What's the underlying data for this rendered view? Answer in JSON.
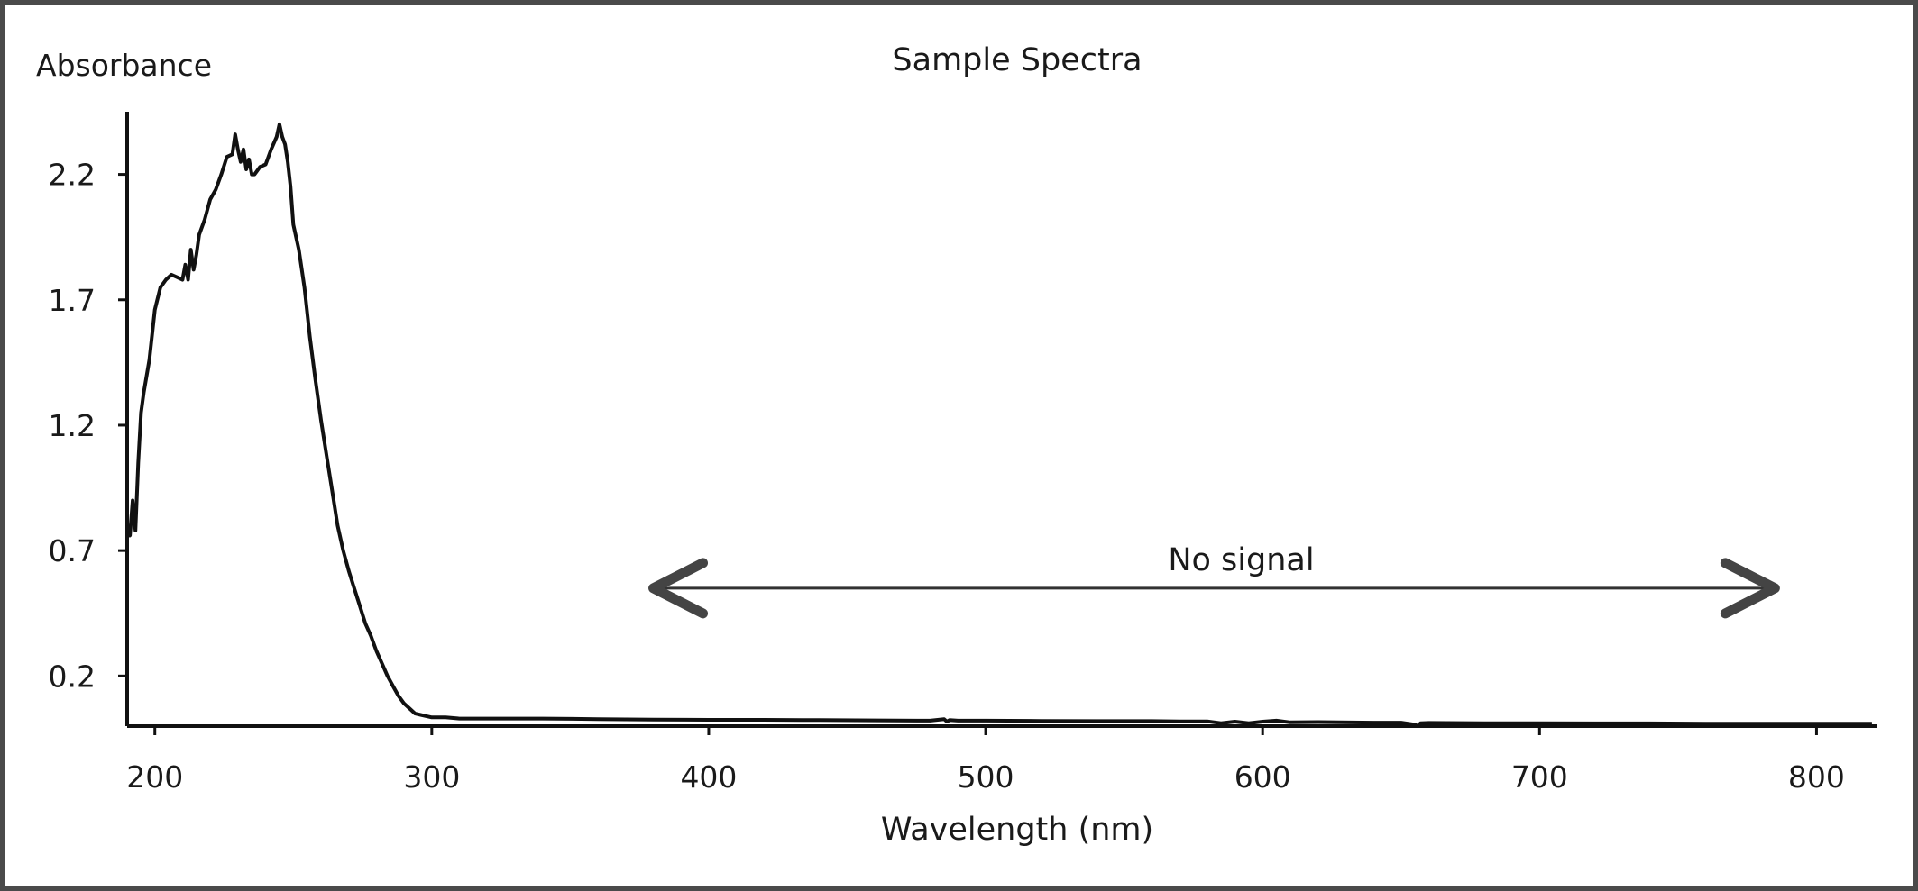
{
  "chart_data": {
    "type": "line",
    "title": "Sample Spectra",
    "xlabel": "Wavelength (nm)",
    "ylabel": "Absorbance",
    "xlim": [
      190,
      822
    ],
    "ylim": [
      0.0,
      2.45
    ],
    "xticks": [
      200,
      300,
      400,
      500,
      600,
      700,
      800
    ],
    "yticks": [
      0.2,
      0.7,
      1.2,
      1.7,
      2.2
    ],
    "ytick_labels": [
      "0.2",
      "0.7",
      "1.2",
      "1.7",
      "2.2"
    ],
    "grid": false,
    "annotation": {
      "text": "No signal",
      "type": "double-arrow",
      "x_start": 380,
      "x_end": 785,
      "y": 0.55
    },
    "series": [
      {
        "x": [
          190,
          191,
          192,
          193,
          194,
          195,
          196,
          198,
          200,
          202,
          204,
          206,
          208,
          210,
          211,
          212,
          213,
          214,
          215,
          216,
          218,
          220,
          222,
          224,
          226,
          228,
          229,
          230,
          231,
          232,
          233,
          234,
          235,
          236,
          238,
          240,
          242,
          244,
          245,
          246,
          247,
          248,
          249,
          250,
          252,
          254,
          256,
          258,
          260,
          262,
          264,
          266,
          268,
          270,
          272,
          274,
          276,
          278,
          280,
          282,
          284,
          286,
          288,
          290,
          292,
          294,
          296,
          298,
          300,
          305,
          310,
          320,
          340,
          360,
          380,
          400,
          420,
          440,
          460,
          480,
          485,
          486,
          487,
          490,
          500,
          520,
          540,
          560,
          570,
          580,
          585,
          590,
          595,
          600,
          605,
          610,
          620,
          640,
          650,
          655,
          656,
          657,
          660,
          680,
          700,
          720,
          740,
          760,
          780,
          800,
          820
        ],
        "y": [
          0.8,
          0.76,
          0.9,
          0.78,
          1.05,
          1.25,
          1.33,
          1.46,
          1.66,
          1.75,
          1.78,
          1.8,
          1.79,
          1.78,
          1.84,
          1.78,
          1.9,
          1.82,
          1.88,
          1.96,
          2.02,
          2.1,
          2.14,
          2.2,
          2.27,
          2.28,
          2.36,
          2.3,
          2.25,
          2.3,
          2.22,
          2.26,
          2.2,
          2.2,
          2.23,
          2.24,
          2.3,
          2.35,
          2.4,
          2.35,
          2.32,
          2.25,
          2.15,
          2.0,
          1.9,
          1.75,
          1.55,
          1.38,
          1.22,
          1.08,
          0.94,
          0.8,
          0.7,
          0.62,
          0.55,
          0.48,
          0.41,
          0.36,
          0.3,
          0.25,
          0.2,
          0.16,
          0.12,
          0.09,
          0.07,
          0.05,
          0.045,
          0.04,
          0.035,
          0.035,
          0.03,
          0.03,
          0.03,
          0.028,
          0.026,
          0.025,
          0.025,
          0.024,
          0.023,
          0.022,
          0.028,
          0.018,
          0.024,
          0.022,
          0.022,
          0.021,
          0.02,
          0.02,
          0.019,
          0.019,
          0.012,
          0.018,
          0.012,
          0.018,
          0.022,
          0.015,
          0.016,
          0.014,
          0.014,
          0.006,
          0.0,
          0.012,
          0.013,
          0.012,
          0.012,
          0.011,
          0.011,
          0.01,
          0.01,
          0.01,
          0.01
        ]
      }
    ]
  }
}
